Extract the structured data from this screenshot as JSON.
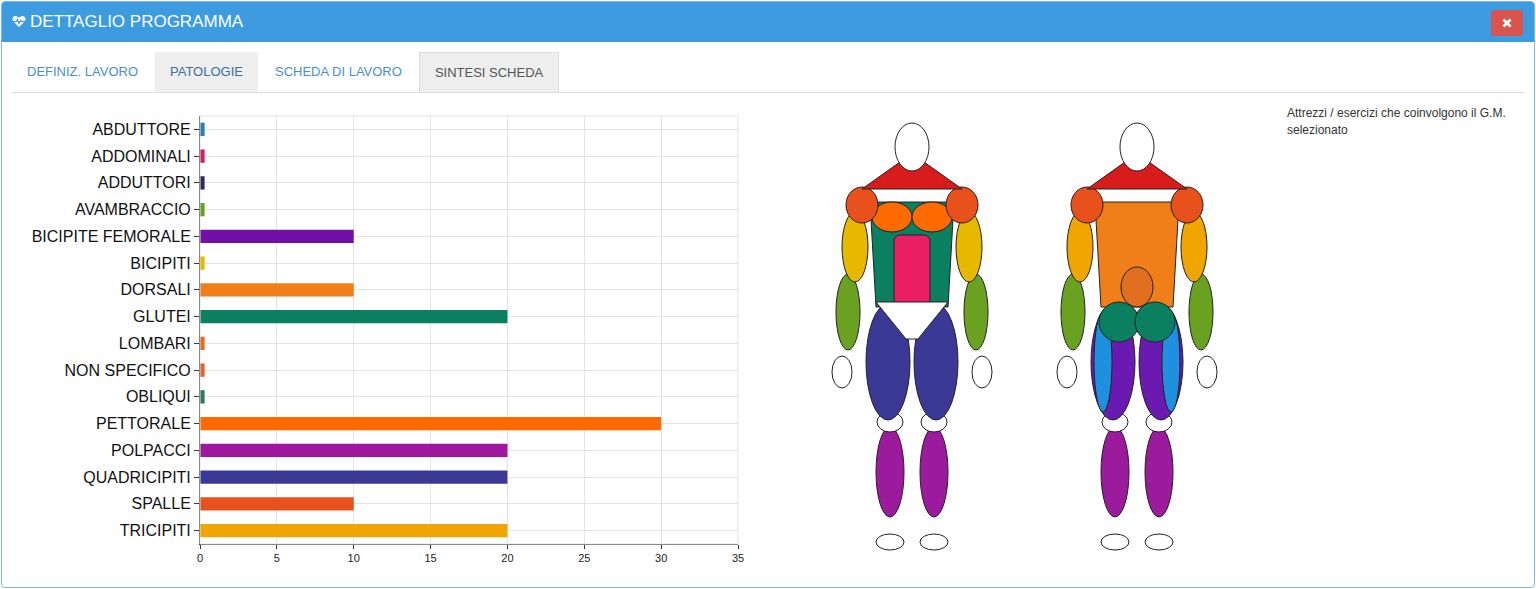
{
  "header": {
    "title": "DETTAGLIO PROGRAMMA"
  },
  "tabs": [
    "DEFINIZ. LAVORO",
    "PATOLOGIE",
    "SCHEDA DI LAVORO",
    "SINTESI SCHEDA"
  ],
  "side_note": "Attrezzi / esercizi che coinvolgono il G.M. selezionato",
  "chart_data": {
    "type": "bar",
    "orientation": "horizontal",
    "categories": [
      "ABDUTTORE",
      "ADDOMINALI",
      "ADDUTTORI",
      "AVAMBRACCIO",
      "BICIPITE FEMORALE",
      "BICIPITI",
      "DORSALI",
      "GLUTEI",
      "LOMBARI",
      "NON SPECIFICO",
      "OBLIQUI",
      "PETTORALE",
      "POLPACCI",
      "QUADRICIPITI",
      "SPALLE",
      "TRICIPITI"
    ],
    "values": [
      0.3,
      0.3,
      0.3,
      0.3,
      10,
      0.3,
      10,
      20,
      0.3,
      0.3,
      0.3,
      30,
      20,
      20,
      10,
      20
    ],
    "colors": [
      "#2a7fc1",
      "#d81b60",
      "#2e2a5e",
      "#6aa121",
      "#7010a8",
      "#e6b800",
      "#f07f1a",
      "#0a8060",
      "#e07020",
      "#e0652a",
      "#2a7a5a",
      "#ff6a00",
      "#a0169e",
      "#3a3a96",
      "#e8501c",
      "#f0a500"
    ],
    "xlim": [
      0,
      35
    ],
    "xticks": [
      0,
      5,
      10,
      15,
      20,
      25,
      30,
      35
    ],
    "grid": true
  }
}
